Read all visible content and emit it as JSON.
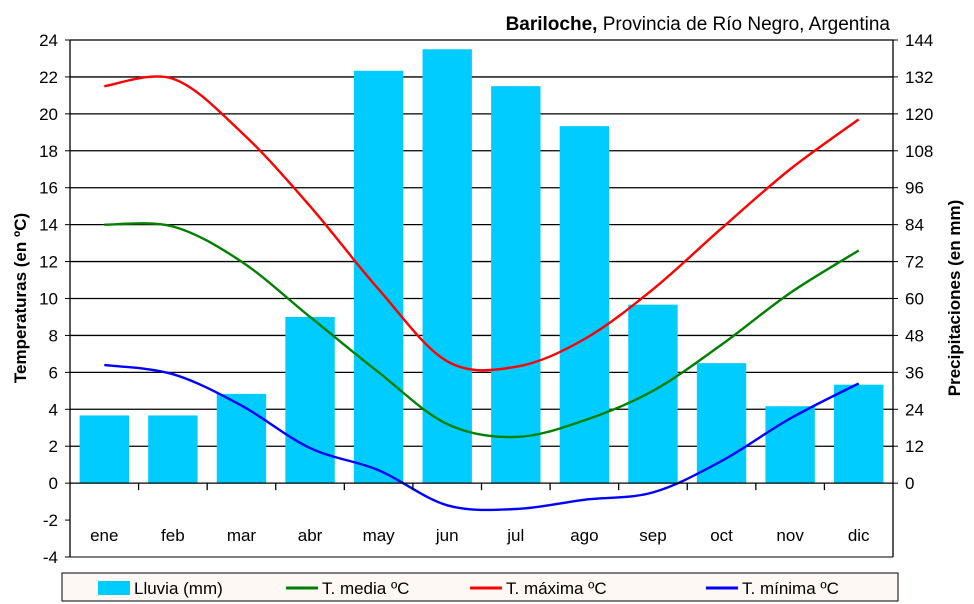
{
  "chart_data": {
    "type": "bar+line",
    "title_bold": "Bariloche,",
    "title_rest": " Provincia de Río Negro, Argentina",
    "categories": [
      "ene",
      "feb",
      "mar",
      "abr",
      "may",
      "jun",
      "jul",
      "ago",
      "sep",
      "oct",
      "nov",
      "dic"
    ],
    "ylabel_left": "Temperaturas (en ºC)",
    "ylabel_right": "Precipitaciones (en mm)",
    "ylim_left": [
      -4,
      24
    ],
    "yticks_left": [
      -4,
      -2,
      0,
      2,
      4,
      6,
      8,
      10,
      12,
      14,
      16,
      18,
      20,
      22,
      24
    ],
    "ylim_right": [
      0,
      144
    ],
    "yticks_right": [
      0,
      12,
      24,
      36,
      48,
      60,
      72,
      84,
      96,
      108,
      120,
      132,
      144
    ],
    "grid": true,
    "legend_position": "bottom",
    "series": [
      {
        "name": "Lluvia (mm)",
        "type": "bar",
        "axis": "right",
        "color": "#00ccff",
        "values": [
          22,
          22,
          29,
          54,
          134,
          141,
          129,
          116,
          58,
          39,
          25,
          32
        ]
      },
      {
        "name": "T. media ºC",
        "type": "line",
        "axis": "left",
        "color": "#008000",
        "values": [
          14.0,
          13.9,
          12.0,
          9.0,
          6.0,
          3.2,
          2.5,
          3.4,
          5.0,
          7.5,
          10.3,
          12.6
        ]
      },
      {
        "name": "T. máxima ºC",
        "type": "line",
        "axis": "left",
        "color": "#ff0000",
        "values": [
          21.5,
          21.9,
          19.0,
          15.0,
          10.5,
          6.6,
          6.3,
          7.8,
          10.5,
          13.8,
          17.0,
          19.7
        ]
      },
      {
        "name": "T. mínima ºC",
        "type": "line",
        "axis": "left",
        "color": "#0000ff",
        "values": [
          6.4,
          5.9,
          4.2,
          1.9,
          0.7,
          -1.2,
          -1.4,
          -0.9,
          -0.5,
          1.2,
          3.5,
          5.4
        ]
      }
    ]
  }
}
